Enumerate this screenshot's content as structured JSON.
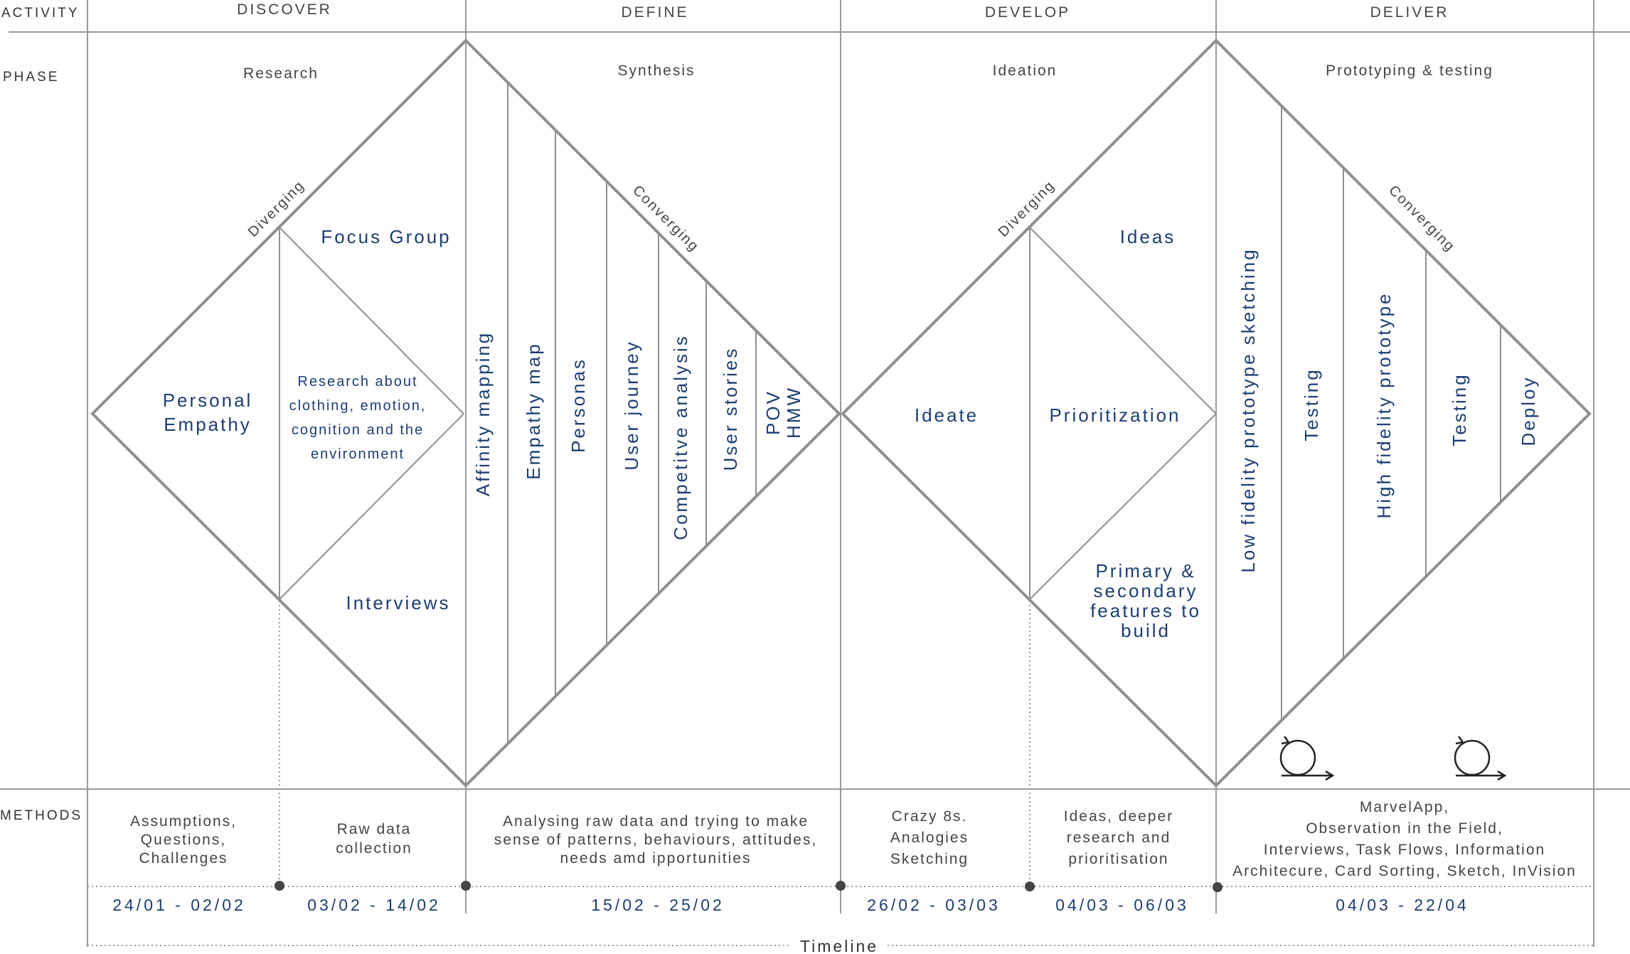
{
  "labels": {
    "activity": "ACTIVITY",
    "phase": "PHASE",
    "methods": "METHODS",
    "timeline": "Timeline"
  },
  "stages": {
    "discover": "DISCOVER",
    "define": "DEFINE",
    "develop": "DEVELOP",
    "deliver": "DELIVER"
  },
  "phases": {
    "research": "Research",
    "synthesis": "Synthesis",
    "ideation": "Ideation",
    "prototyping": "Prototyping & testing"
  },
  "flow": {
    "diverging_1": "Diverging",
    "converging_1": "Converging",
    "diverging_2": "Diverging",
    "converging_2": "Converging"
  },
  "discover_items": {
    "personal_line1": "Personal",
    "personal_line2": "Empathy",
    "focus_group": "Focus Group",
    "research_line1": "Research about",
    "research_line2": "clothing, emotion,",
    "research_line3": "cognition and the",
    "research_line4": "environment",
    "interviews": "Interviews"
  },
  "define_items": [
    "Affinity mapping",
    "Empathy map",
    "Personas",
    "User journey",
    "Competitve analysis",
    "User stories",
    "POV",
    "HMW"
  ],
  "develop_items": {
    "ideas": "Ideas",
    "ideate": "Ideate",
    "prioritization": "Prioritization",
    "primary_line1": "Primary &",
    "primary_line2": "secondary",
    "primary_line3": "features to",
    "primary_line4": "build"
  },
  "deliver_items": [
    "Low fidelity prototype sketching",
    "Testing",
    "High fidelity prototype",
    "Testing",
    "Deploy"
  ],
  "methods": {
    "m1_line1": "Assumptions,",
    "m1_line2": "Questions,",
    "m1_line3": "Challenges",
    "m2_line1": "Raw data",
    "m2_line2": "collection",
    "m3_line1": "Analysing raw data and trying to make",
    "m3_line2": "sense of patterns, behaviours, attitudes,",
    "m3_line3": "needs amd ipportunities",
    "m4_line1": "Crazy 8s.",
    "m4_line2": "Analogies",
    "m4_line3": "Sketching",
    "m5_line1": "Ideas, deeper",
    "m5_line2": "research and",
    "m5_line3": "prioritisation",
    "m6_line1": "MarvelApp,",
    "m6_line2": "Observation in the Field,",
    "m6_line3": "Interviews, Task Flows, Information",
    "m6_line4": "Architecure, Card Sorting, Sketch, InVision"
  },
  "dates": [
    "24/01 - 02/02",
    "03/02 - 14/02",
    "15/02 - 25/02",
    "26/02 - 03/03",
    "04/03 - 06/03",
    "04/03 - 22/04"
  ],
  "icons": [
    "loop-icon",
    "loop-icon"
  ],
  "colors": {
    "accent": "#1c3e72",
    "line": "#8f8f8f",
    "text": "#444444"
  }
}
